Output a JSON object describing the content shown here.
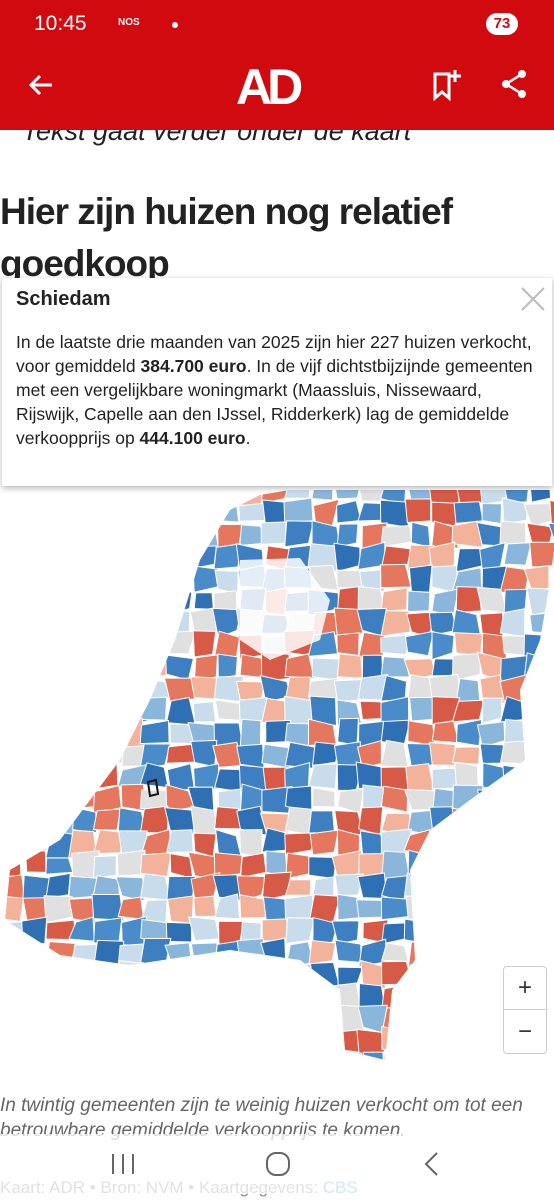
{
  "status_bar": {
    "time": "10:45",
    "app": "NOS",
    "battery": "73"
  },
  "header": {
    "logo": "AD"
  },
  "article": {
    "intro_cut": "Tekst gaat verder onder de kaart",
    "heading": "Hier zijn huizen nog relatief goedkoop",
    "tooltip": {
      "title": "Schiedam",
      "parts": [
        "In de laatste drie maanden van 2025 zijn hier 227 huizen verkocht, voor gemiddeld ",
        "384.700 euro",
        ". In de vijf dichtstbijzijnde gemeenten met een vergelijkbare woningmarkt (Maassluis, Nissewaard, Rijswijk, Capelle aan den IJssel, Ridderkerk) lag de gemiddelde verkoopprijs op ",
        "444.100 euro",
        "."
      ]
    },
    "zoom": {
      "in": "+",
      "out": "−"
    },
    "caption": "In twintig gemeenten zijn te weinig huizen verkocht om tot een betrouwbare gemiddelde verkoopprijs te komen.",
    "source": "Kaart: ADR • Bron: NVM • Kaartgegevens: ",
    "source_link": "CBS"
  }
}
